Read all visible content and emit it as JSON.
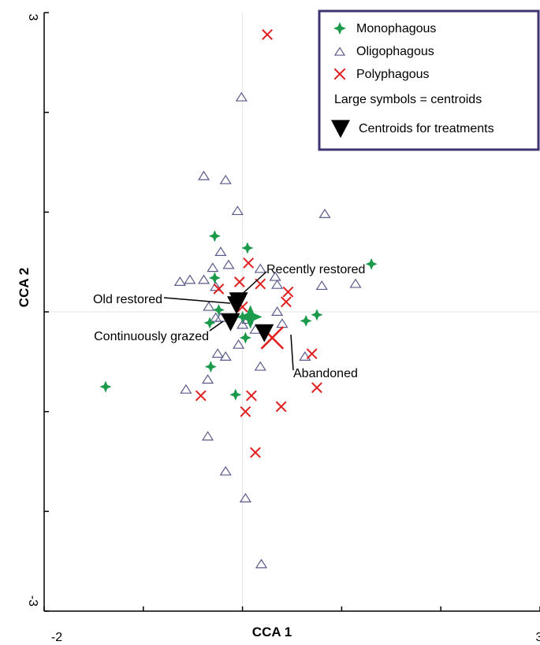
{
  "chart_data": {
    "type": "scatter",
    "title": "",
    "xlabel": "CCA 1",
    "ylabel": "CCA 2",
    "xlim": [
      -2,
      3
    ],
    "ylim": [
      -3,
      3
    ],
    "x_tick_labels": [
      "-2",
      "3"
    ],
    "y_tick_labels": [
      "-3",
      "3"
    ],
    "grid": false,
    "legend_position": "top-right",
    "legend": {
      "entries": [
        {
          "key": "mono",
          "label": "Monophagous",
          "color": "#1a9a4a",
          "marker": "star4"
        },
        {
          "key": "oligo",
          "label": "Oligophagous",
          "color": "#5a5a8a",
          "marker": "triangle-open"
        },
        {
          "key": "poly",
          "label": "Polyphagous",
          "color": "#e02020",
          "marker": "x"
        }
      ],
      "note": "Large symbols = centroids",
      "treatment_label": "Centroids for treatments"
    },
    "series": [
      {
        "key": "mono",
        "points": [
          [
            -0.28,
            0.76
          ],
          [
            0.05,
            0.64
          ],
          [
            1.3,
            0.48
          ],
          [
            -0.28,
            0.34
          ],
          [
            -0.24,
            0.02
          ],
          [
            -0.33,
            -0.11
          ],
          [
            -0.32,
            -0.55
          ],
          [
            -1.38,
            -0.75
          ],
          [
            -0.07,
            -0.83
          ],
          [
            0.03,
            -0.26
          ],
          [
            0.64,
            -0.09
          ],
          [
            0.75,
            -0.03
          ],
          [
            0.0,
            -0.05
          ]
        ],
        "centroid": [
          0.08,
          -0.05
        ]
      },
      {
        "key": "oligo",
        "points": [
          [
            -0.01,
            2.15
          ],
          [
            -0.39,
            1.36
          ],
          [
            -0.17,
            1.32
          ],
          [
            -0.05,
            1.01
          ],
          [
            0.83,
            0.98
          ],
          [
            -0.22,
            0.6
          ],
          [
            -0.14,
            0.47
          ],
          [
            -0.3,
            0.44
          ],
          [
            -0.63,
            0.3
          ],
          [
            -0.53,
            0.32
          ],
          [
            -0.39,
            0.32
          ],
          [
            -0.27,
            0.25
          ],
          [
            0.33,
            0.35
          ],
          [
            0.18,
            0.43
          ],
          [
            0.35,
            0.27
          ],
          [
            0.35,
            0.0
          ],
          [
            0.4,
            -0.12
          ],
          [
            0.8,
            0.26
          ],
          [
            1.14,
            0.28
          ],
          [
            -0.34,
            0.05
          ],
          [
            -0.27,
            -0.06
          ],
          [
            -0.22,
            -0.06
          ],
          [
            0.0,
            -0.13
          ],
          [
            0.05,
            -0.08
          ],
          [
            0.13,
            -0.18
          ],
          [
            -0.04,
            -0.33
          ],
          [
            -0.25,
            -0.42
          ],
          [
            -0.17,
            -0.45
          ],
          [
            -0.35,
            -0.68
          ],
          [
            -0.57,
            -0.78
          ],
          [
            0.18,
            -0.55
          ],
          [
            0.63,
            -0.45
          ],
          [
            -0.35,
            -1.25
          ],
          [
            -0.17,
            -1.6
          ],
          [
            0.03,
            -1.87
          ],
          [
            0.19,
            -2.53
          ]
        ]
      },
      {
        "key": "poly",
        "points": [
          [
            0.25,
            2.78
          ],
          [
            0.06,
            0.49
          ],
          [
            -0.03,
            0.3
          ],
          [
            0.18,
            0.28
          ],
          [
            -0.24,
            0.23
          ],
          [
            0.46,
            0.2
          ],
          [
            0.44,
            0.1
          ],
          [
            0.0,
            0.05
          ],
          [
            -0.42,
            -0.84
          ],
          [
            0.09,
            -0.84
          ],
          [
            0.03,
            -1.0
          ],
          [
            0.39,
            -0.95
          ],
          [
            0.75,
            -0.76
          ],
          [
            0.7,
            -0.42
          ],
          [
            0.13,
            -1.41
          ]
        ],
        "centroid": [
          0.3,
          -0.26
        ]
      }
    ],
    "treatment_centroids": [
      {
        "label": "Recently restored",
        "point": [
          -0.04,
          0.12
        ]
      },
      {
        "label": "Old restored",
        "point": [
          -0.06,
          0.08
        ]
      },
      {
        "label": "Continuously grazed",
        "point": [
          -0.12,
          -0.09
        ]
      },
      {
        "label": "Abandoned",
        "point": [
          0.22,
          -0.2
        ]
      }
    ]
  }
}
